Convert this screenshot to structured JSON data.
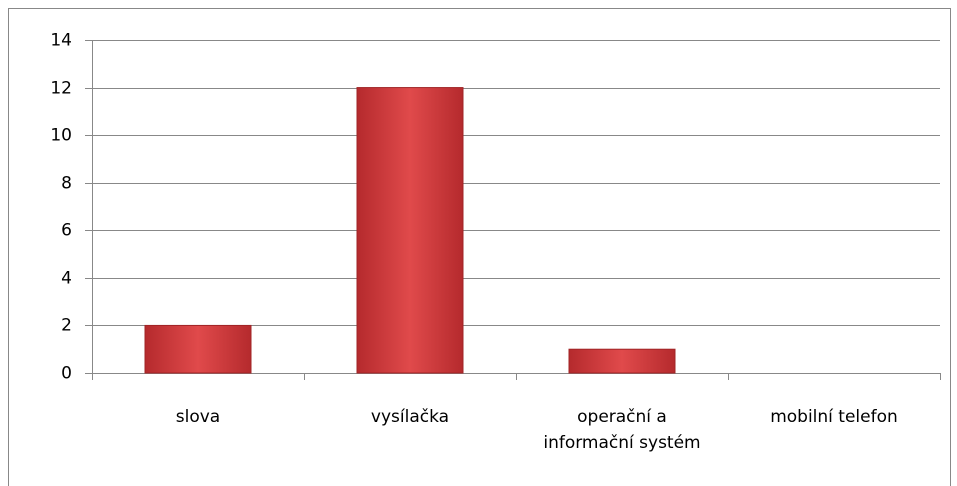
{
  "chart_data": {
    "type": "bar",
    "categories": [
      "slova",
      "vysílačka",
      "operační a informační systém",
      "mobilní telefon"
    ],
    "values": [
      2,
      12,
      1,
      0
    ],
    "color": "#c93a3c",
    "ylim": [
      0,
      14
    ],
    "yticks": [
      0,
      2,
      4,
      6,
      8,
      10,
      12,
      14
    ],
    "grid": true
  }
}
